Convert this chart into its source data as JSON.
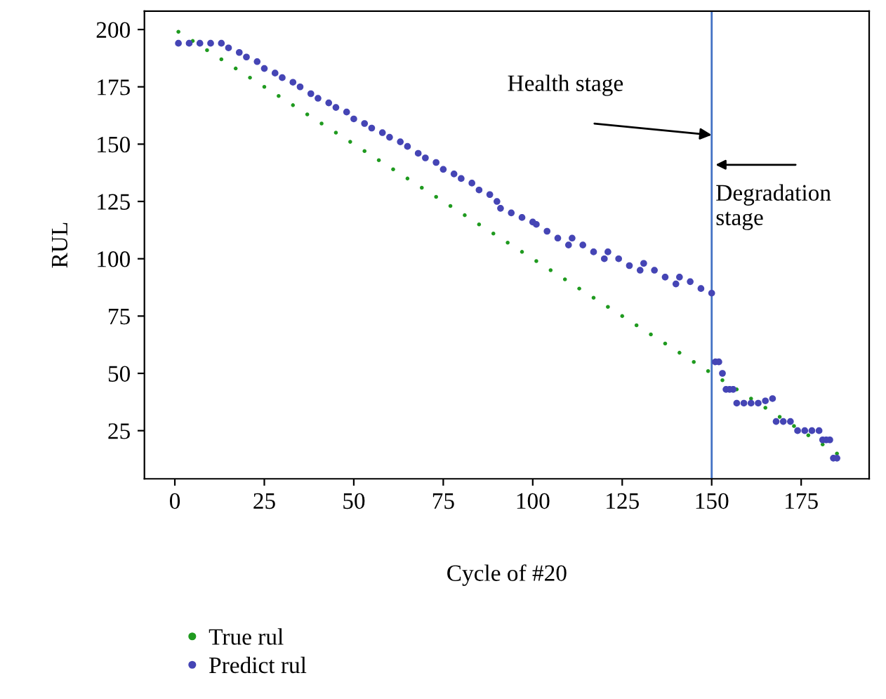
{
  "chart_data": {
    "type": "scatter",
    "xlabel": "Cycle of #20",
    "ylabel": "RUL",
    "xlim": [
      -8.5,
      194
    ],
    "ylim": [
      4,
      208
    ],
    "xticks": [
      0,
      25,
      50,
      75,
      100,
      125,
      150,
      175
    ],
    "yticks": [
      25,
      50,
      75,
      100,
      125,
      150,
      175,
      200
    ],
    "grid": false,
    "legend": "bottom",
    "marker": "circle",
    "series": [
      {
        "name": "True rul",
        "color": "#1f9a1f",
        "x": [
          1,
          5,
          9,
          13,
          17,
          21,
          25,
          29,
          33,
          37,
          41,
          45,
          49,
          53,
          57,
          61,
          65,
          69,
          73,
          77,
          81,
          85,
          89,
          93,
          97,
          101,
          105,
          109,
          113,
          117,
          121,
          125,
          129,
          133,
          137,
          141,
          145,
          149,
          153,
          157,
          161,
          165,
          169,
          173,
          177,
          181,
          185
        ],
        "values": [
          199,
          195,
          191,
          187,
          183,
          179,
          175,
          171,
          167,
          163,
          159,
          155,
          151,
          147,
          143,
          139,
          135,
          131,
          127,
          123,
          119,
          115,
          111,
          107,
          103,
          99,
          95,
          91,
          87,
          83,
          79,
          75,
          71,
          67,
          63,
          59,
          55,
          51,
          47,
          43,
          39,
          35,
          31,
          27,
          23,
          19,
          15
        ]
      },
      {
        "name": "Predict rul",
        "color": "#4545b5",
        "x": [
          1,
          4,
          7,
          10,
          13,
          15,
          18,
          20,
          23,
          25,
          28,
          30,
          33,
          35,
          38,
          40,
          43,
          45,
          48,
          50,
          53,
          55,
          58,
          60,
          63,
          65,
          68,
          70,
          73,
          75,
          78,
          80,
          83,
          85,
          88,
          90,
          91,
          94,
          97,
          100,
          101,
          104,
          107,
          110,
          111,
          114,
          117,
          120,
          121,
          124,
          127,
          130,
          131,
          134,
          137,
          140,
          141,
          144,
          147,
          150,
          151,
          152,
          153,
          154,
          155,
          156,
          157,
          159,
          161,
          163,
          165,
          167,
          168,
          170,
          172,
          174,
          176,
          178,
          180,
          181,
          182,
          183,
          184,
          185
        ],
        "values": [
          194,
          194,
          194,
          194,
          194,
          192,
          190,
          188,
          186,
          183,
          181,
          179,
          177,
          175,
          172,
          170,
          168,
          166,
          164,
          161,
          159,
          157,
          155,
          153,
          151,
          149,
          146,
          144,
          142,
          139,
          137,
          135,
          133,
          130,
          128,
          125,
          122,
          120,
          118,
          116,
          115,
          112,
          109,
          106,
          109,
          106,
          103,
          100,
          103,
          100,
          97,
          95,
          98,
          95,
          92,
          89,
          92,
          90,
          87,
          85,
          55,
          55,
          50,
          43,
          43,
          43,
          37,
          37,
          37,
          37,
          38,
          39,
          29,
          29,
          29,
          25,
          25,
          25,
          25,
          21,
          21,
          21,
          13,
          13
        ]
      }
    ],
    "ref_lines": [
      {
        "axis": "x",
        "value": 150,
        "color": "#4472c4",
        "line_style": "solid"
      }
    ],
    "annotations": [
      {
        "text": "Health stage",
        "x": 150,
        "y": 154
      },
      {
        "text": "Degradation\nstage",
        "x": 150,
        "y": 141
      }
    ]
  }
}
